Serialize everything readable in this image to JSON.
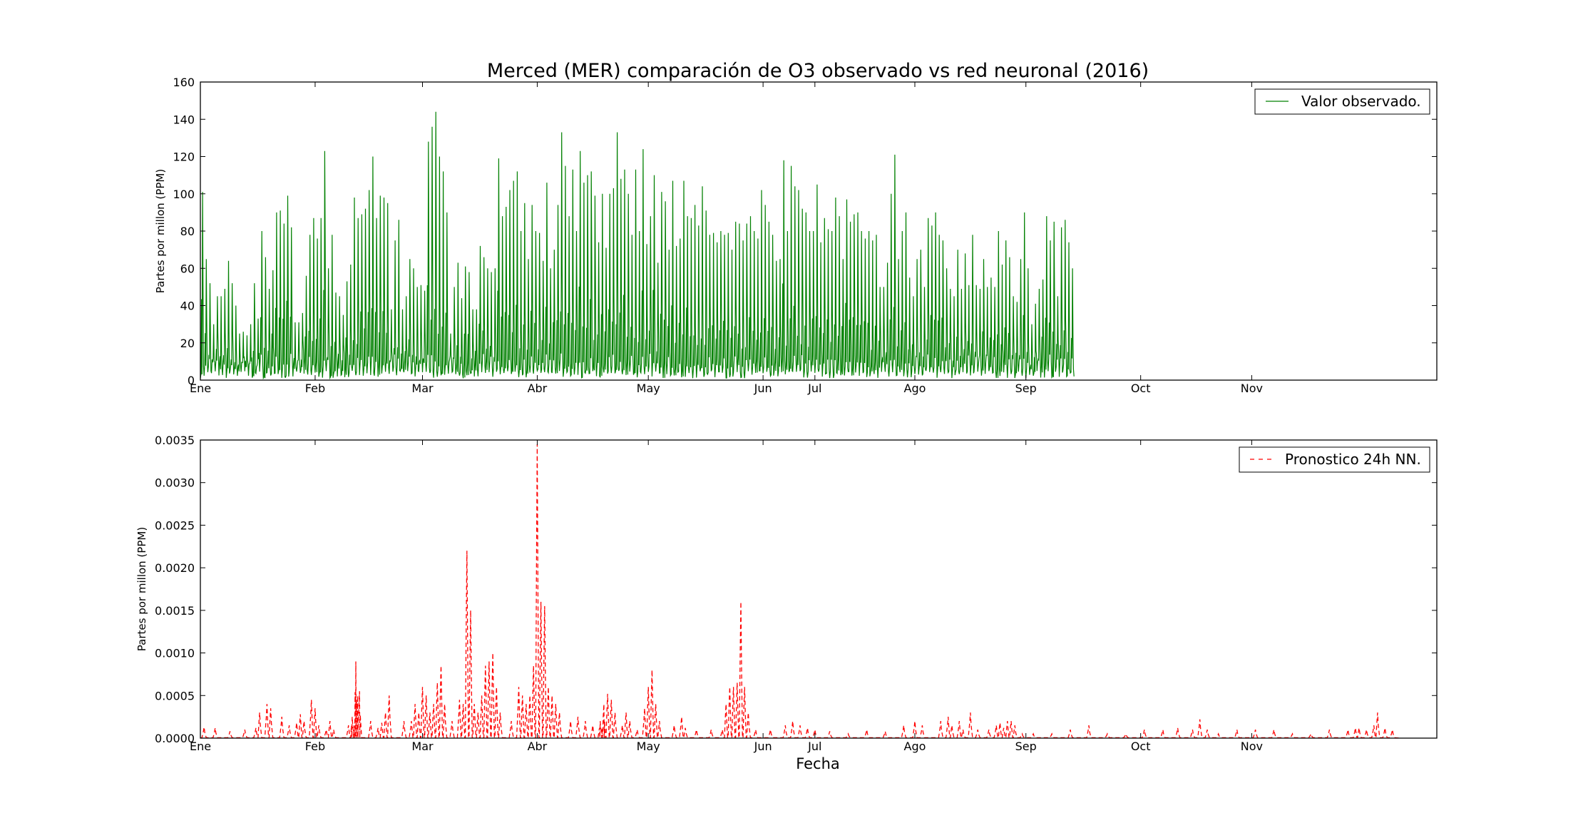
{
  "chart_data": {
    "title": "Merced (MER) comparación de O3 observado vs red neuronal (2016)",
    "xlabel": "Fecha",
    "months": [
      "Ene",
      "Feb",
      "Mar",
      "Abr",
      "May",
      "Jun",
      "Jul",
      "Ago",
      "Sep",
      "Oct",
      "Nov"
    ],
    "month_day_offsets": [
      0,
      31,
      60,
      91,
      121,
      152,
      166,
      193,
      223,
      254,
      284
    ],
    "xlim_days": [
      0,
      334
    ],
    "grid": false,
    "panels": [
      {
        "type": "line",
        "ylabel": "Partes por millon (PPM)",
        "ylim": [
          0,
          160
        ],
        "yticks": [
          "0",
          "20",
          "40",
          "60",
          "80",
          "100",
          "120",
          "140",
          "160"
        ],
        "yticks_values": [
          0,
          20,
          40,
          60,
          80,
          100,
          120,
          140,
          160
        ],
        "legend_position": "top-right",
        "series": [
          {
            "name": "Valor observado.",
            "color": "#008000",
            "style": "solid",
            "x_unit": "days since Ene 1",
            "daily_peaks": [
              101,
              65,
              52,
              30,
              45,
              45,
              49,
              64,
              52,
              40,
              25,
              26,
              24,
              30,
              52,
              33,
              80,
              66,
              49,
              59,
              90,
              91,
              84,
              99,
              82,
              31,
              31,
              36,
              56,
              78,
              87,
              76,
              87,
              123,
              60,
              78,
              47,
              45,
              35,
              53,
              62,
              98,
              87,
              89,
              92,
              102,
              120,
              87,
              99,
              98,
              95,
              38,
              75,
              86,
              38,
              45,
              65,
              60,
              50,
              51,
              48,
              128,
              136,
              144,
              120,
              112,
              90,
              25,
              50,
              63,
              44,
              61,
              58,
              38,
              38,
              72,
              66,
              60,
              58,
              60,
              119,
              88,
              93,
              102,
              107,
              112,
              80,
              95,
              65,
              94,
              80,
              79,
              64,
              106,
              60,
              70,
              94,
              133,
              115,
              88,
              113,
              80,
              123,
              106,
              110,
              112,
              99,
              74,
              100,
              71,
              100,
              103,
              133,
              108,
              113,
              100,
              78,
              113,
              80,
              124,
              73,
              88,
              110,
              63,
              101,
              96,
              70,
              107,
              72,
              76,
              107,
              88,
              87,
              94,
              83,
              104,
              91,
              78,
              79,
              74,
              80,
              78,
              79,
              70,
              85,
              84,
              75,
              84,
              88,
              80,
              76,
              102,
              94,
              85,
              78,
              64,
              65,
              118,
              80,
              115,
              104,
              102,
              92,
              90,
              80,
              80,
              105,
              74,
              87,
              81,
              80,
              98,
              88,
              65,
              97,
              85,
              89,
              90,
              80,
              76,
              80,
              75,
              78,
              50,
              50,
              63,
              100,
              121,
              65,
              80,
              90,
              55,
              45,
              65,
              70,
              50,
              87,
              83,
              90,
              78,
              75,
              60,
              49,
              45,
              70,
              49,
              68,
              51,
              78,
              51,
              49,
              65,
              50,
              55,
              50,
              80,
              62,
              75,
              66,
              45,
              42,
              65,
              90,
              60,
              30,
              41,
              49,
              54,
              88,
              75,
              85,
              45,
              82,
              86,
              74,
              60
            ]
          }
        ]
      },
      {
        "type": "line",
        "ylabel": "Partes por millon (PPM)",
        "ylim": [
          0,
          0.0035
        ],
        "yticks": [
          "0.0000",
          "0.0005",
          "0.0010",
          "0.0015",
          "0.0020",
          "0.0025",
          "0.0030",
          "0.0035"
        ],
        "yticks_values": [
          0,
          0.0005,
          0.001,
          0.0015,
          0.002,
          0.0025,
          0.003,
          0.0035
        ],
        "legend_position": "top-right",
        "series": [
          {
            "name": "Pronostico 24h NN.",
            "color": "#ff0000",
            "style": "dashed",
            "x_unit": "days since Ene 1",
            "peaks": [
              [
                1,
                0.00013
              ],
              [
                4,
                0.00012
              ],
              [
                8,
                8e-05
              ],
              [
                12,
                0.0001
              ],
              [
                15,
                0.00012
              ],
              [
                16,
                0.0003
              ],
              [
                18,
                0.0004
              ],
              [
                19,
                0.00035
              ],
              [
                22,
                0.00025
              ],
              [
                24,
                0.00015
              ],
              [
                26,
                0.00018
              ],
              [
                27,
                0.00028
              ],
              [
                28,
                0.0002
              ],
              [
                30,
                0.00045
              ],
              [
                31,
                0.00035
              ],
              [
                32,
                0.00015
              ],
              [
                34,
                0.0001
              ],
              [
                35,
                0.0002
              ],
              [
                36,
                0.0001
              ],
              [
                40,
                0.00015
              ],
              [
                41,
                0.00025
              ],
              [
                41.5,
                0.00015
              ],
              [
                42,
                0.0009
              ],
              [
                42.5,
                0.0005
              ],
              [
                43,
                0.00055
              ],
              [
                46,
                0.0002
              ],
              [
                48,
                0.00012
              ],
              [
                49,
                0.00018
              ],
              [
                50,
                0.0003
              ],
              [
                51,
                0.0005
              ],
              [
                55,
                0.0002
              ],
              [
                57,
                0.0002
              ],
              [
                58,
                0.0004
              ],
              [
                59,
                0.0003
              ],
              [
                60,
                0.0006
              ],
              [
                61,
                0.0005
              ],
              [
                62,
                0.0003
              ],
              [
                63,
                0.0004
              ],
              [
                64,
                0.00065
              ],
              [
                65,
                0.00085
              ],
              [
                66,
                0.0004
              ],
              [
                68,
                0.0002
              ],
              [
                70,
                0.00045
              ],
              [
                71,
                0.0004
              ],
              [
                72,
                0.0022
              ],
              [
                73,
                0.0015
              ],
              [
                74,
                0.0004
              ],
              [
                75,
                0.0003
              ],
              [
                76,
                0.0005
              ],
              [
                77,
                0.00085
              ],
              [
                78,
                0.0009
              ],
              [
                79,
                0.001
              ],
              [
                80,
                0.0006
              ],
              [
                81,
                0.0003
              ],
              [
                84,
                0.0002
              ],
              [
                86,
                0.0006
              ],
              [
                87,
                0.0005
              ],
              [
                88,
                0.0004
              ],
              [
                89,
                0.0005
              ],
              [
                90,
                0.00085
              ],
              [
                91,
                0.00345
              ],
              [
                92,
                0.0016
              ],
              [
                93,
                0.00155
              ],
              [
                94,
                0.0006
              ],
              [
                95,
                0.0005
              ],
              [
                96,
                0.0004
              ],
              [
                97,
                0.0003
              ],
              [
                100,
                0.0002
              ],
              [
                102,
                0.00025
              ],
              [
                104,
                0.0002
              ],
              [
                106,
                0.00015
              ],
              [
                108,
                0.0002
              ],
              [
                108.5,
                0.00012
              ],
              [
                109,
                0.0004
              ],
              [
                110,
                0.00052
              ],
              [
                111,
                0.00045
              ],
              [
                112,
                0.0003
              ],
              [
                114,
                0.00015
              ],
              [
                115,
                0.0003
              ],
              [
                116,
                0.0002
              ],
              [
                118,
                0.0001
              ],
              [
                120,
                0.00035
              ],
              [
                121,
                0.0006
              ],
              [
                122,
                0.0008
              ],
              [
                123,
                0.0004
              ],
              [
                124,
                0.0002
              ],
              [
                128,
                0.00015
              ],
              [
                130,
                0.00025
              ],
              [
                131,
                0.00012
              ],
              [
                134,
                0.0001
              ],
              [
                138,
                0.0001
              ],
              [
                141,
                0.0001
              ],
              [
                142,
                0.0004
              ],
              [
                143,
                0.0006
              ],
              [
                144,
                0.0006
              ],
              [
                145,
                0.00065
              ],
              [
                146,
                0.0016
              ],
              [
                147,
                0.0006
              ],
              [
                148,
                0.0003
              ],
              [
                150,
                0.0001
              ],
              [
                154,
                0.0001
              ],
              [
                158,
                0.00015
              ],
              [
                160,
                0.0002
              ],
              [
                162,
                0.00015
              ],
              [
                164,
                0.00012
              ],
              [
                166,
                0.0001
              ],
              [
                170,
                8e-05
              ],
              [
                175,
                5e-05
              ],
              [
                180,
                0.0001
              ],
              [
                185,
                8e-05
              ],
              [
                190,
                0.00015
              ],
              [
                193,
                0.0002
              ],
              [
                195,
                0.00015
              ],
              [
                200,
                0.0002
              ],
              [
                202,
                0.00025
              ],
              [
                203,
                0.00015
              ],
              [
                205,
                0.0002
              ],
              [
                206,
                0.0001
              ],
              [
                208,
                0.0003
              ],
              [
                210,
                0.0001
              ],
              [
                213,
                0.0001
              ],
              [
                215,
                0.00015
              ],
              [
                216,
                0.00018
              ],
              [
                217,
                0.00012
              ],
              [
                218,
                0.0002
              ],
              [
                219,
                0.0002
              ],
              [
                220,
                0.00015
              ],
              [
                222,
                5e-05
              ],
              [
                225,
                5e-05
              ],
              [
                230,
                5e-05
              ],
              [
                235,
                0.0001
              ],
              [
                240,
                0.00015
              ],
              [
                245,
                5e-05
              ],
              [
                250,
                5e-05
              ],
              [
                255,
                0.0001
              ],
              [
                260,
                0.0001
              ],
              [
                264,
                0.00012
              ],
              [
                268,
                0.0001
              ],
              [
                270,
                0.00022
              ],
              [
                272,
                0.0001
              ],
              [
                275,
                5e-05
              ],
              [
                280,
                0.0001
              ],
              [
                285,
                0.0001
              ],
              [
                290,
                0.0001
              ],
              [
                295,
                5e-05
              ],
              [
                300,
                5e-05
              ],
              [
                305,
                0.0001
              ],
              [
                310,
                0.0001
              ],
              [
                312,
                0.00012
              ],
              [
                313,
                0.00012
              ],
              [
                315,
                0.0001
              ],
              [
                317,
                0.00015
              ],
              [
                318,
                0.0003
              ],
              [
                320,
                0.00012
              ],
              [
                322,
                0.0001
              ]
            ]
          }
        ]
      }
    ]
  }
}
